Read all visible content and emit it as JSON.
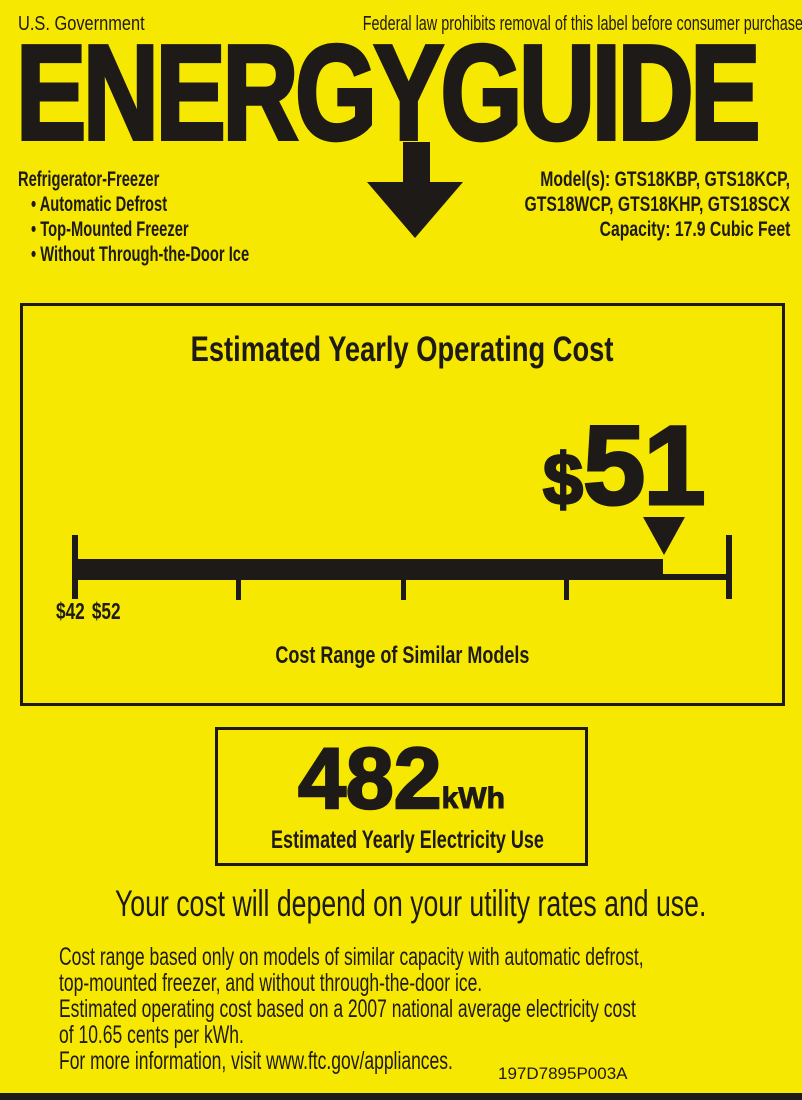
{
  "colors": {
    "background_yellow": "#F6E800",
    "ink_black": "#1E1A17"
  },
  "header": {
    "left": "U.S. Government",
    "right": "Federal law prohibits removal of this label before consumer purchase."
  },
  "logo": {
    "text": "ENERGYGUIDE"
  },
  "product": {
    "bullet_char": "•",
    "category": "Refrigerator-Freezer",
    "features": [
      "Automatic Defrost",
      "Top-Mounted Freezer",
      "Without Through-the-Door Ice"
    ],
    "model_lines": [
      "Model(s): GTS18KBP, GTS18KCP,",
      "GTS18WCP, GTS18KHP, GTS18SCX",
      "Capacity: 17.9 Cubic Feet"
    ]
  },
  "cost_box": {
    "title": "Estimated Yearly Operating Cost",
    "currency": "$",
    "value": "51",
    "range_min": "$42",
    "range_max": "$52",
    "caption": "Cost Range of Similar Models"
  },
  "usage_box": {
    "value": "482",
    "unit": "kWh",
    "caption": "Estimated Yearly Electricity Use"
  },
  "disclaimer": "Your cost will depend on your utility rates and use.",
  "footnotes": [
    {
      "lines": [
        "Cost range based only on models of similar capacity with automatic defrost,",
        "top-mounted freezer, and without through-the-door ice."
      ]
    },
    {
      "lines": [
        "Estimated operating cost based on a 2007 national average electricity cost",
        "of 10.65 cents per kWh."
      ]
    },
    {
      "lines": [
        "For more information, visit www.ftc.gov/appliances."
      ]
    }
  ],
  "part_number": "197D7895P003A"
}
